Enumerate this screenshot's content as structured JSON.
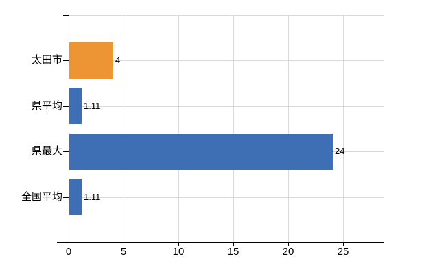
{
  "chart_data": {
    "type": "bar",
    "orientation": "horizontal",
    "title": "",
    "xlabel": "",
    "ylabel": "",
    "categories": [
      "太田市",
      "県平均",
      "県最大",
      "全国平均"
    ],
    "values": [
      4,
      1.11,
      24,
      1.11
    ],
    "value_labels": [
      "4",
      "1.11",
      "24",
      "1.11"
    ],
    "bar_colors": [
      "#ed9434",
      "#3e6fb4",
      "#3e6fb4",
      "#3e6fb4"
    ],
    "xlim": [
      0,
      28.75
    ],
    "xticks": [
      0,
      5,
      10,
      15,
      20,
      25
    ],
    "xtick_labels": [
      "0",
      "5",
      "10",
      "15",
      "20",
      "25"
    ],
    "grid": true,
    "legend": false,
    "colors": {
      "axis": "#000000",
      "gridline": "#d9d9d9",
      "text": "#000000",
      "background": "#ffffff"
    }
  }
}
